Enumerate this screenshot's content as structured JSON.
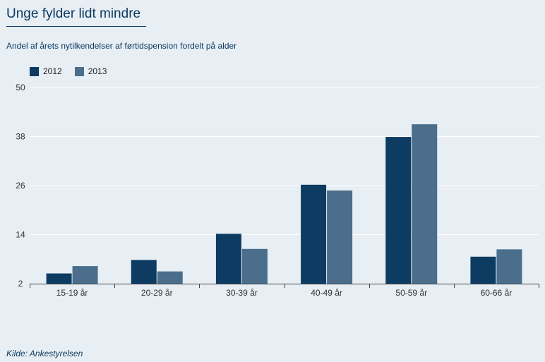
{
  "chart_data": {
    "type": "bar",
    "title": "Unge fylder lidt mindre",
    "subtitle": "Andel af årets nytilkendelser af førtidspension fordelt på alder",
    "source": "Kilde: Ankestyrelsen",
    "categories": [
      "15-19 år",
      "20-29 år",
      "30-39 år",
      "40-49 år",
      "50-59 år",
      "60-66 år"
    ],
    "series": [
      {
        "name": "2012",
        "color": "#0d3b61",
        "values": [
          4.5,
          7.8,
          14.2,
          26.2,
          37.9,
          8.6
        ]
      },
      {
        "name": "2013",
        "color": "#4a6e8c",
        "values": [
          6.3,
          5.0,
          10.5,
          24.8,
          41.0,
          10.4
        ]
      }
    ],
    "yticks": [
      "50",
      "38",
      "26",
      "14",
      "2"
    ],
    "ylim": [
      2,
      50
    ],
    "grid": true,
    "legend": "top-left"
  }
}
